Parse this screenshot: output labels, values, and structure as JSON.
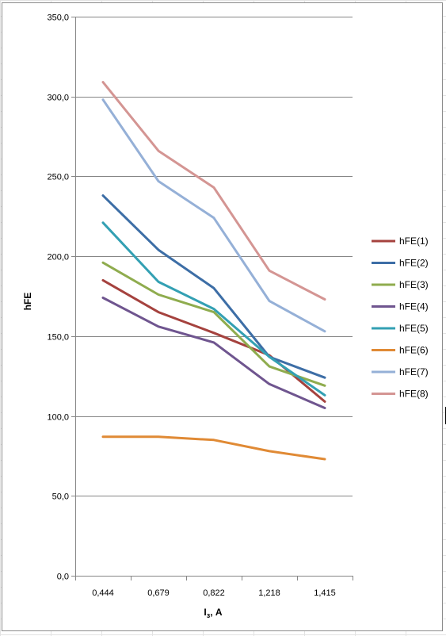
{
  "chart_data": {
    "type": "line",
    "title": "",
    "xlabel_main": "I",
    "xlabel_sub": "з",
    "xlabel_rest": ", A",
    "ylabel": "hFE",
    "categories": [
      "0,444",
      "0,679",
      "0,822",
      "1,218",
      "1,415"
    ],
    "ylim": [
      0,
      350
    ],
    "ystep": 50,
    "ytick_labels": [
      "0,0",
      "50,0",
      "100,0",
      "150,0",
      "200,0",
      "250,0",
      "300,0",
      "350,0"
    ],
    "grid": "horizontal major gridlines",
    "legend_position": "right",
    "series": [
      {
        "name": "hFE(1)",
        "color": "#a5423e",
        "values": [
          185,
          165,
          152,
          138,
          109
        ]
      },
      {
        "name": "hFE(2)",
        "color": "#3d6ea6",
        "values": [
          238,
          204,
          180,
          137,
          124
        ]
      },
      {
        "name": "hFE(3)",
        "color": "#8fac4e",
        "values": [
          196,
          176,
          165,
          131,
          119
        ]
      },
      {
        "name": "hFE(4)",
        "color": "#6f558f",
        "values": [
          174,
          156,
          146,
          120,
          105
        ]
      },
      {
        "name": "hFE(5)",
        "color": "#33a0b3",
        "values": [
          221,
          184,
          167,
          137,
          113
        ]
      },
      {
        "name": "hFE(6)",
        "color": "#e08a35",
        "values": [
          87,
          87,
          85,
          78,
          73
        ]
      },
      {
        "name": "hFE(7)",
        "color": "#95b0d7",
        "values": [
          298,
          247,
          224,
          172,
          153
        ]
      },
      {
        "name": "hFE(8)",
        "color": "#d49593",
        "values": [
          309,
          266,
          243,
          191,
          173
        ]
      }
    ]
  }
}
